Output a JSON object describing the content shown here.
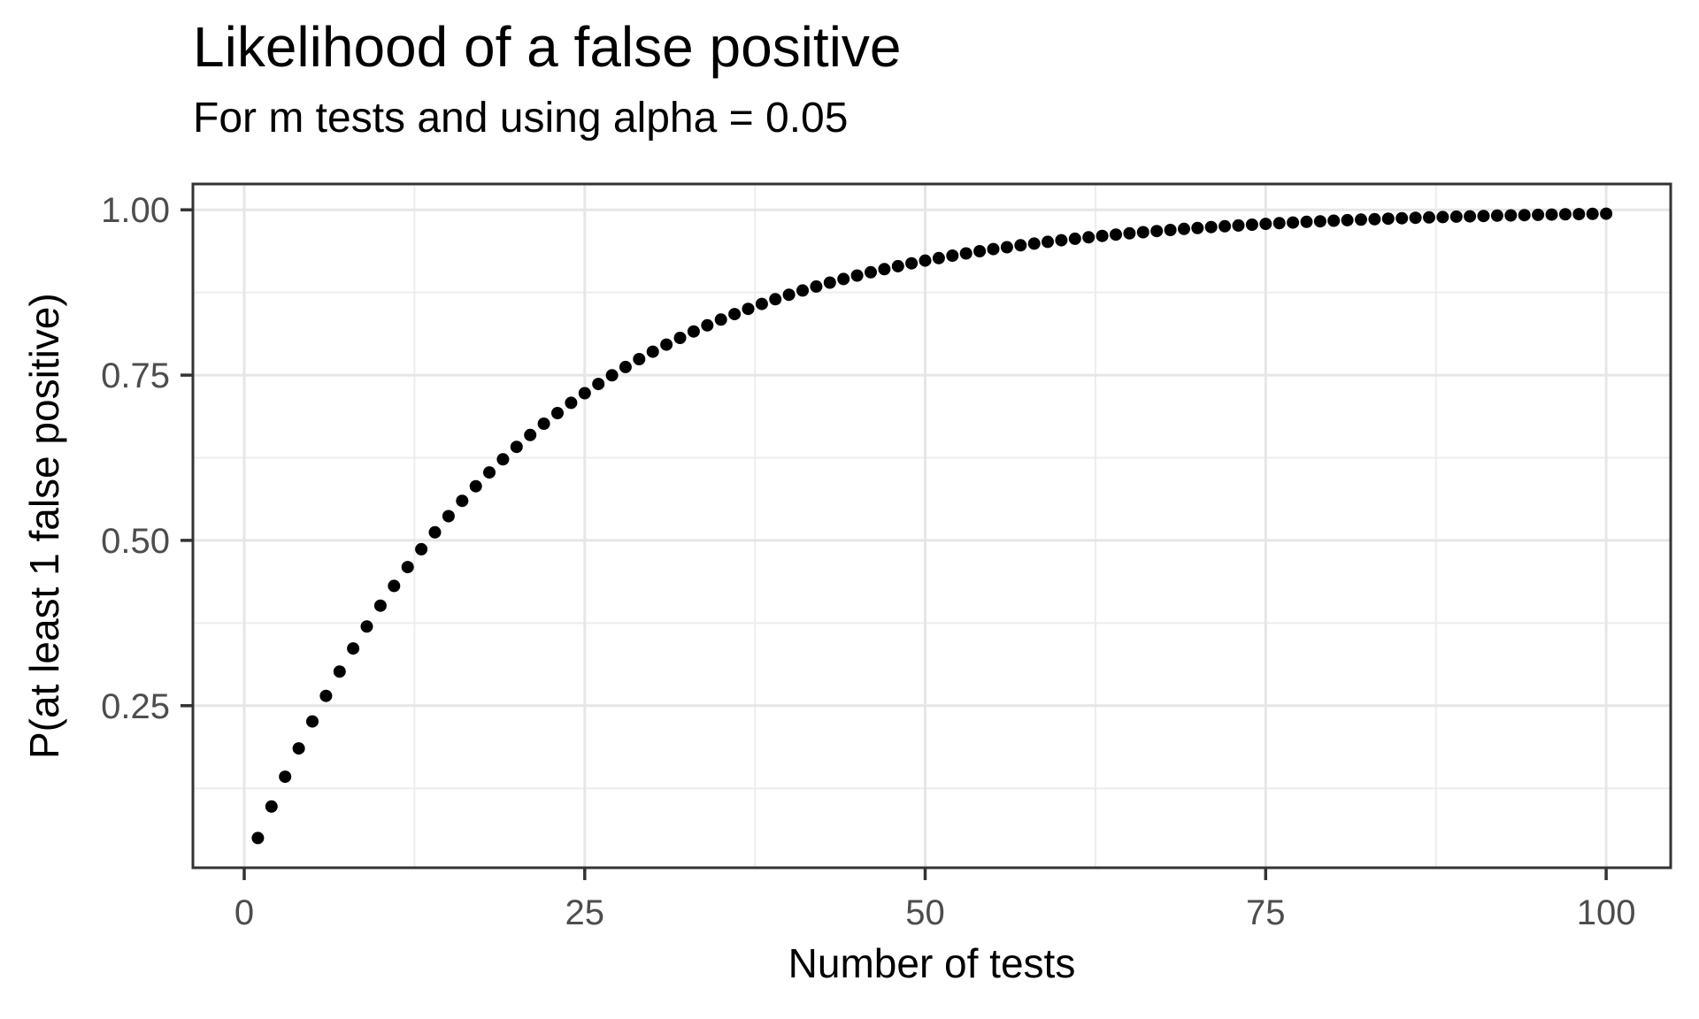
{
  "chart_data": {
    "type": "scatter",
    "title": "Likelihood of a false positive",
    "subtitle": "For m tests and using alpha = 0.05",
    "xlabel": "Number of tests",
    "ylabel": "P(at least 1 false positive)",
    "x_ticks": [
      0,
      25,
      50,
      75,
      100
    ],
    "x_tick_labels": [
      "0",
      "25",
      "50",
      "75",
      "100"
    ],
    "y_ticks": [
      0.25,
      0.5,
      0.75,
      1.0
    ],
    "y_tick_labels": [
      "0.25",
      "0.50",
      "0.75",
      "1.00"
    ],
    "x_minor_gridlines": [
      12.5,
      37.5,
      62.5,
      87.5
    ],
    "y_minor_gridlines": [
      0.125,
      0.375,
      0.625,
      0.875
    ],
    "xlim": [
      -3.77,
      104.74
    ],
    "ylim": [
      0.005,
      1.039
    ],
    "grid": "on",
    "legend": "none",
    "alpha": 0.05,
    "x": [
      1,
      2,
      3,
      4,
      5,
      6,
      7,
      8,
      9,
      10,
      11,
      12,
      13,
      14,
      15,
      16,
      17,
      18,
      19,
      20,
      21,
      22,
      23,
      24,
      25,
      26,
      27,
      28,
      29,
      30,
      31,
      32,
      33,
      34,
      35,
      36,
      37,
      38,
      39,
      40,
      41,
      42,
      43,
      44,
      45,
      46,
      47,
      48,
      49,
      50,
      51,
      52,
      53,
      54,
      55,
      56,
      57,
      58,
      59,
      60,
      61,
      62,
      63,
      64,
      65,
      66,
      67,
      68,
      69,
      70,
      71,
      72,
      73,
      74,
      75,
      76,
      77,
      78,
      79,
      80,
      81,
      82,
      83,
      84,
      85,
      86,
      87,
      88,
      89,
      90,
      91,
      92,
      93,
      94,
      95,
      96,
      97,
      98,
      99,
      100
    ],
    "values": [
      0.05,
      0.0975,
      0.1426,
      0.1855,
      0.2262,
      0.2649,
      0.3017,
      0.3366,
      0.3698,
      0.4013,
      0.4312,
      0.4596,
      0.4867,
      0.5123,
      0.5367,
      0.5599,
      0.5819,
      0.6028,
      0.6226,
      0.6415,
      0.6594,
      0.6765,
      0.6926,
      0.708,
      0.7226,
      0.7365,
      0.7497,
      0.7622,
      0.7741,
      0.7854,
      0.7961,
      0.8063,
      0.816,
      0.8252,
      0.8339,
      0.8422,
      0.8501,
      0.8576,
      0.8647,
      0.8715,
      0.8779,
      0.884,
      0.8898,
      0.8953,
      0.9006,
      0.9055,
      0.9102,
      0.9147,
      0.919,
      0.9231,
      0.9269,
      0.9306,
      0.934,
      0.9373,
      0.9405,
      0.9434,
      0.9463,
      0.9489,
      0.9515,
      0.9539,
      0.9562,
      0.9584,
      0.9605,
      0.9625,
      0.9644,
      0.9661,
      0.9678,
      0.9694,
      0.971,
      0.9724,
      0.9738,
      0.9751,
      0.9763,
      0.9775,
      0.9787,
      0.9797,
      0.9807,
      0.9817,
      0.9826,
      0.9835,
      0.9843,
      0.9851,
      0.9858,
      0.9865,
      0.9872,
      0.9879,
      0.9885,
      0.989,
      0.9896,
      0.9901,
      0.9906,
      0.9911,
      0.9915,
      0.9919,
      0.9923,
      0.9927,
      0.9931,
      0.9934,
      0.9938,
      0.9941
    ],
    "colors": {
      "point": "#000000",
      "panel_background": "#ffffff",
      "panel_border": "#333333",
      "grid_major": "#e6e6e6",
      "grid_minor": "#ededed",
      "axis_tick": "#333333",
      "tick_label_text": "#4d4d4d",
      "title_text": "#000000"
    }
  }
}
